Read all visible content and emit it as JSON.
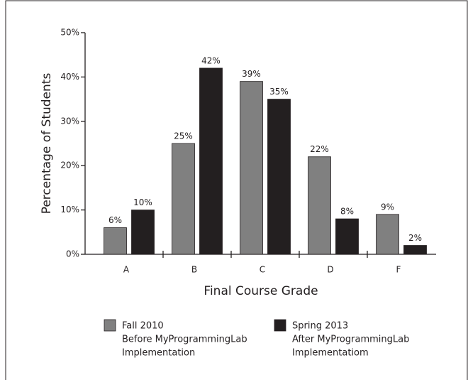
{
  "chart_data": {
    "type": "bar",
    "x_label": "Final Course Grade",
    "y_label": "Percentage of Students",
    "categories": [
      "A",
      "B",
      "C",
      "D",
      "F"
    ],
    "series": [
      {
        "name": "Fall 2010",
        "note": [
          "Before MyProgrammingLab",
          "Implementation"
        ],
        "color": "#808080",
        "values": [
          6,
          25,
          39,
          22,
          9
        ],
        "value_labels": [
          "6%",
          "25%",
          "39%",
          "22%",
          "9%"
        ]
      },
      {
        "name": "Spring 2013",
        "note": [
          "After MyProgrammingLab",
          "Implementatiom"
        ],
        "color": "#231f20",
        "values": [
          10,
          42,
          35,
          8,
          2
        ],
        "value_labels": [
          "10%",
          "42%",
          "35%",
          "8%",
          "2%"
        ]
      }
    ],
    "ylim": [
      0,
      50
    ],
    "yticks": [
      {
        "value": 0,
        "label": "0%"
      },
      {
        "value": 10,
        "label": "10%"
      },
      {
        "value": 20,
        "label": "20%"
      },
      {
        "value": 30,
        "label": "30%"
      },
      {
        "value": 40,
        "label": "40%"
      },
      {
        "value": 50,
        "label": "50%"
      }
    ],
    "grid": false
  }
}
